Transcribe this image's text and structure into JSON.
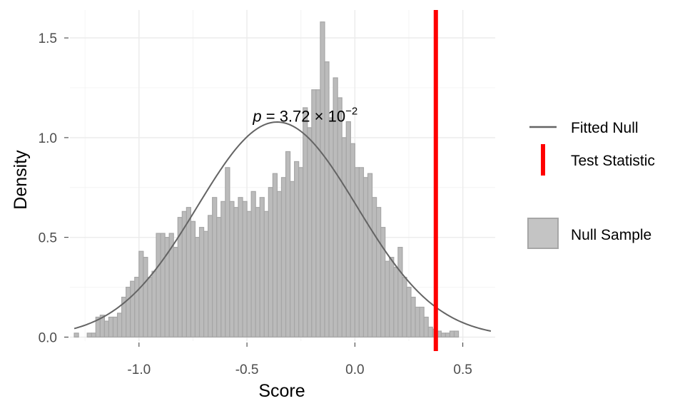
{
  "chart_data": {
    "type": "bar",
    "xlabel": "Score",
    "ylabel": "Density",
    "xlim": [
      -1.32,
      0.65
    ],
    "ylim": [
      -0.02,
      1.64
    ],
    "x_ticks": [
      -1.0,
      -0.5,
      0.0,
      0.5
    ],
    "x_tick_labels": [
      "-1.0",
      "-0.5",
      "0.0",
      "0.5"
    ],
    "y_ticks": [
      0.0,
      0.5,
      1.0,
      1.5
    ],
    "y_tick_labels": [
      "0.0",
      "0.5",
      "1.0",
      "1.5"
    ],
    "grid": true,
    "histogram": {
      "name": "Null Sample",
      "bin_start": -1.3,
      "bin_width": 0.02,
      "values": [
        0.02,
        0.0,
        0.0,
        0.02,
        0.02,
        0.1,
        0.11,
        0.08,
        0.1,
        0.1,
        0.12,
        0.2,
        0.25,
        0.28,
        0.3,
        0.43,
        0.4,
        0.3,
        0.33,
        0.52,
        0.52,
        0.5,
        0.52,
        0.45,
        0.6,
        0.63,
        0.65,
        0.58,
        0.5,
        0.55,
        0.53,
        0.61,
        0.7,
        0.6,
        0.68,
        0.85,
        0.68,
        0.65,
        0.7,
        0.68,
        0.63,
        0.73,
        0.65,
        0.7,
        0.63,
        0.75,
        0.82,
        0.73,
        0.8,
        0.93,
        0.78,
        0.88,
        0.85,
        1.15,
        1.05,
        1.24,
        1.24,
        1.58,
        1.38,
        1.1,
        1.3,
        1.2,
        1.0,
        1.08,
        0.97,
        0.85,
        0.85,
        0.8,
        0.82,
        0.7,
        0.65,
        0.55,
        0.38,
        0.4,
        0.35,
        0.45,
        0.3,
        0.25,
        0.2,
        0.15,
        0.15,
        0.1,
        0.05,
        0.04,
        0.03,
        0.02,
        0.02,
        0.03,
        0.03
      ],
      "color": "#bbbbbb",
      "edge_color": "#a6a6a6"
    },
    "fitted_null": {
      "name": "Fitted Null",
      "distribution": "normal",
      "mean": -0.36,
      "sd": 0.37,
      "x_range": [
        -1.3,
        0.63
      ],
      "color": "#646464"
    },
    "test_statistic": {
      "name": "Test Statistic",
      "x": 0.375,
      "color": "#ff0000"
    },
    "annotation": {
      "x": -0.23,
      "y": 1.08,
      "p_symbol": "p",
      "equals": " = ",
      "mantissa": "3.72",
      "times": " × 10",
      "exponent": "−2"
    },
    "legend": {
      "placement": "right",
      "items": [
        {
          "label": "Fitted Null",
          "kind": "line",
          "color": "#646464"
        },
        {
          "label": "Test Statistic",
          "kind": "vline",
          "color": "#ff0000"
        },
        {
          "label": "Null Sample",
          "kind": "fill",
          "color": "#bbbbbb"
        }
      ]
    }
  }
}
